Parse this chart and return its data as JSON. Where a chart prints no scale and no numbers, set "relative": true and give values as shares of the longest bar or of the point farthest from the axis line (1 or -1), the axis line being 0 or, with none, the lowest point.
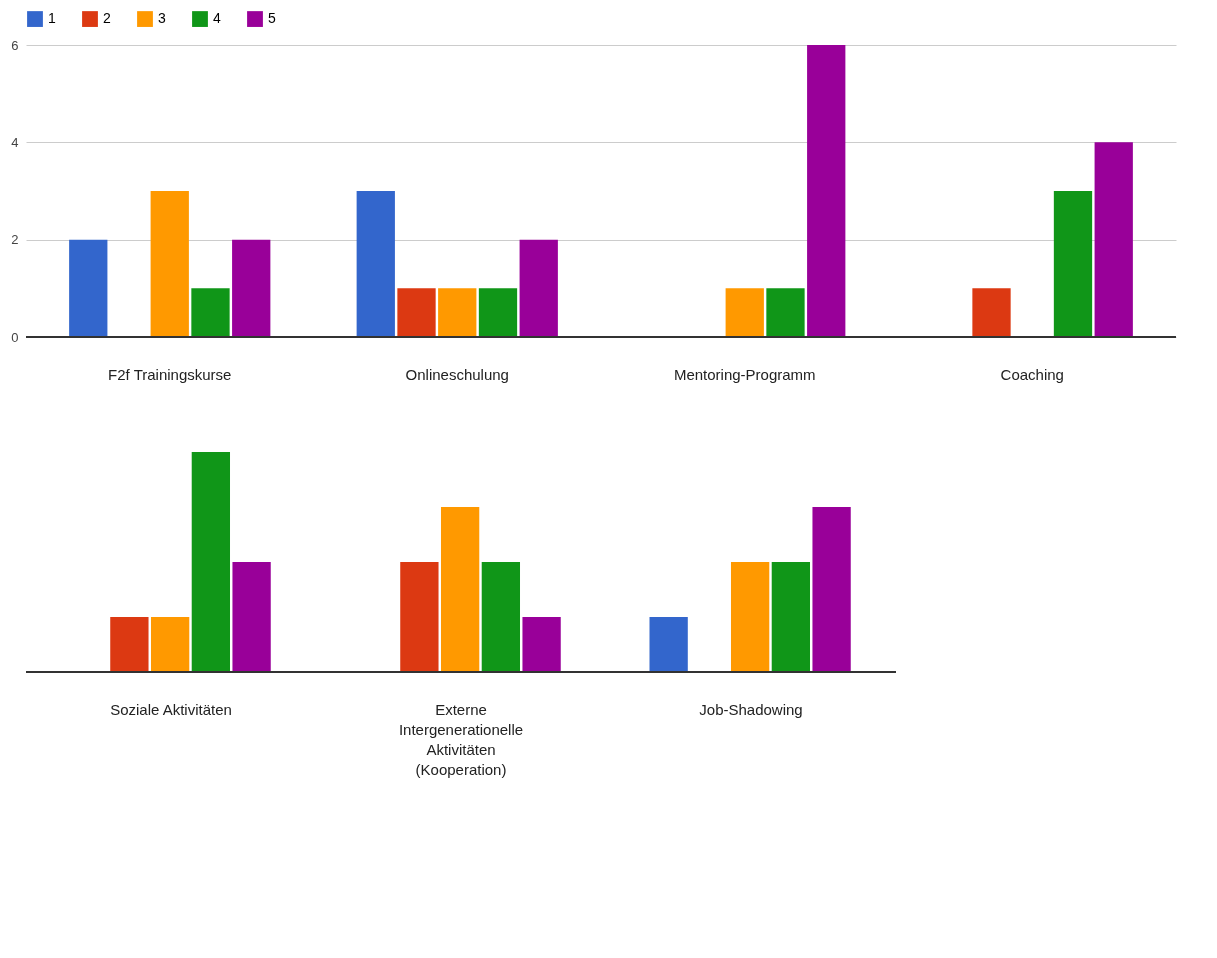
{
  "chart_data": [
    {
      "type": "bar",
      "categories": [
        "F2f Trainingskurse",
        "Onlineschulung",
        "Mentoring-Programm",
        "Coaching"
      ],
      "series": [
        {
          "name": "1",
          "color": "#3366cc",
          "values": [
            2,
            3,
            0,
            0
          ]
        },
        {
          "name": "2",
          "color": "#dc3912",
          "values": [
            0,
            1,
            0,
            1
          ]
        },
        {
          "name": "3",
          "color": "#ff9900",
          "values": [
            3,
            1,
            1,
            0
          ]
        },
        {
          "name": "4",
          "color": "#109618",
          "values": [
            1,
            1,
            1,
            3
          ]
        },
        {
          "name": "5",
          "color": "#990099",
          "values": [
            2,
            2,
            6,
            4
          ]
        }
      ],
      "ylim": [
        0,
        6
      ],
      "yticks": [
        0,
        2,
        4,
        6
      ],
      "grid": "y",
      "legend": "top left"
    },
    {
      "type": "bar",
      "categories": [
        "Soziale Aktivitäten",
        "Externe Intergenerationelle Aktivitäten (Kooperation)",
        "Job-Shadowing"
      ],
      "series": [
        {
          "color": "#3366cc",
          "values": [
            0,
            0,
            0.25
          ]
        },
        {
          "color": "#dc3912",
          "values": [
            0.25,
            0.5,
            0
          ]
        },
        {
          "color": "#ff9900",
          "values": [
            0.25,
            0.75,
            0.5
          ]
        },
        {
          "color": "#109618",
          "values": [
            1,
            0.5,
            0.5
          ]
        },
        {
          "color": "#990099",
          "values": [
            0.5,
            0.25,
            0.75
          ]
        }
      ],
      "relative": true
    }
  ]
}
